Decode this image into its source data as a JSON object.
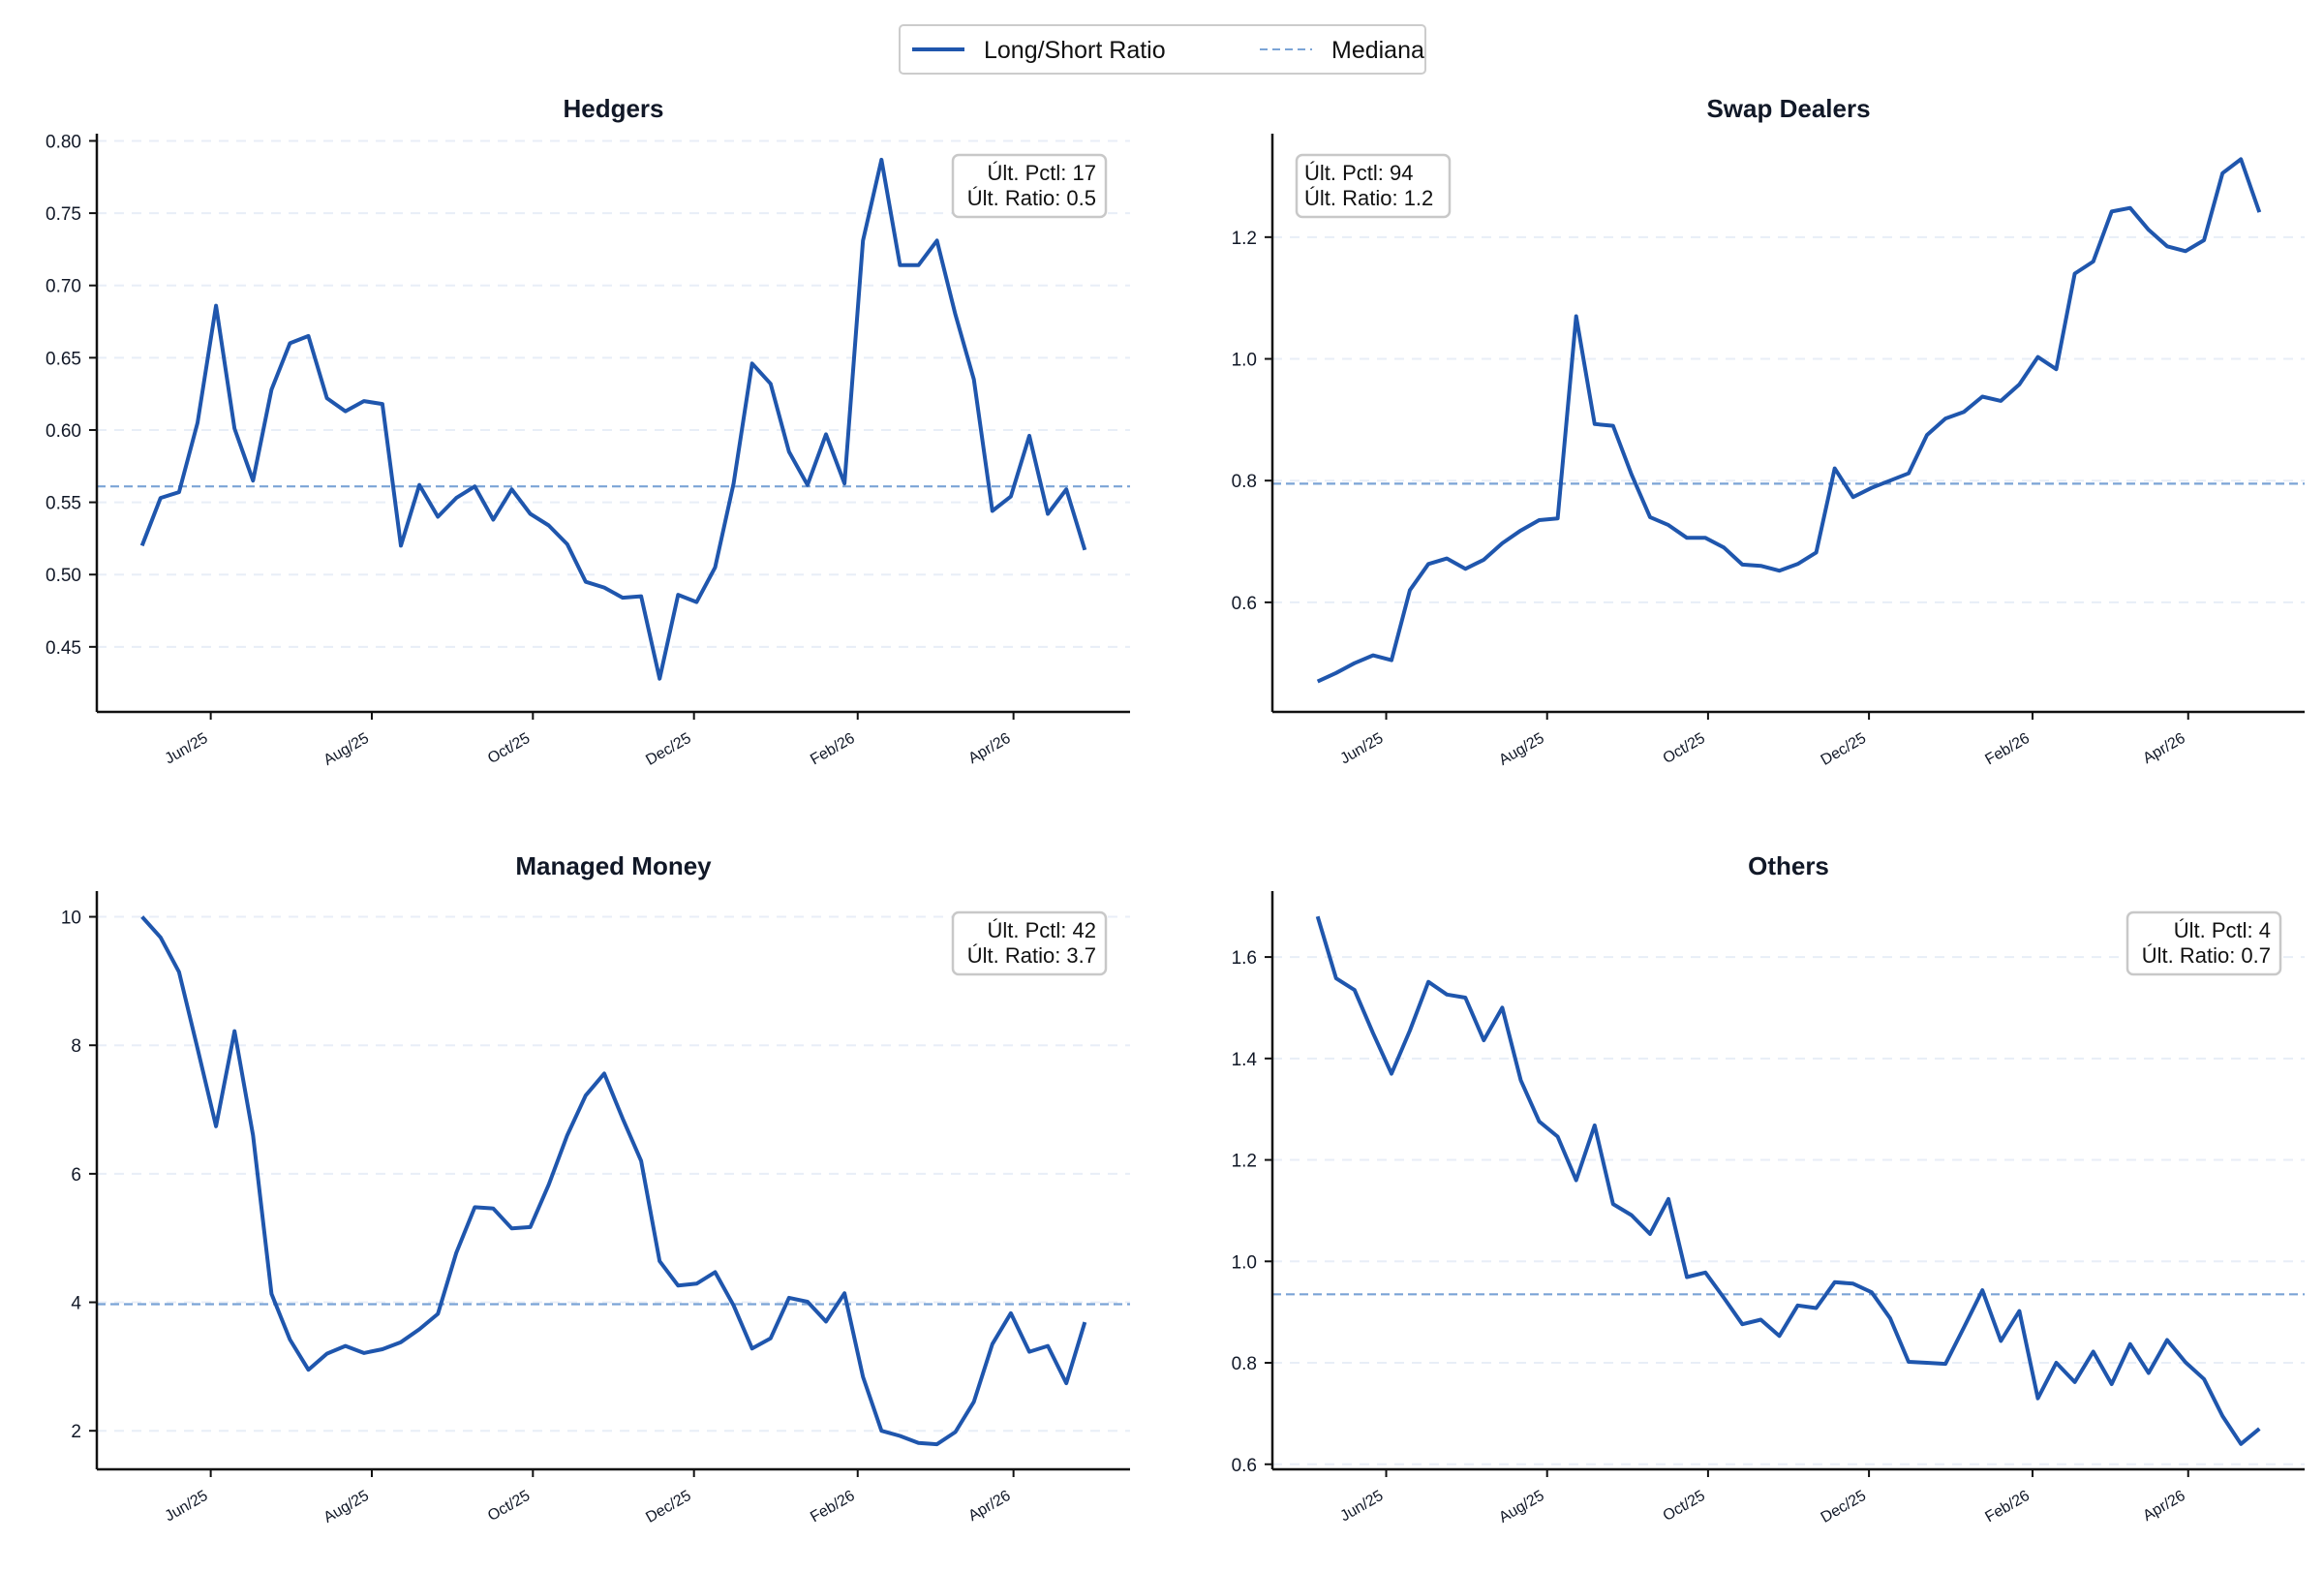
{
  "legend": {
    "series_label": "Long/Short Ratio",
    "median_label": "Mediana"
  },
  "colors": {
    "series": "#1f56ad",
    "median": "#7ba4d6",
    "grid": "#e8eef7",
    "axis": "#111111"
  },
  "x_ticks": [
    "Jun/25",
    "Aug/25",
    "Oct/25",
    "Dec/25",
    "Feb/26",
    "Apr/26"
  ],
  "chart_data": [
    {
      "type": "line",
      "title": "Hedgers",
      "x_start": "2025-05-06",
      "x_end": "2026-04-28",
      "x_ticks": [
        "2025-06-01",
        "2025-08-01",
        "2025-10-01",
        "2025-12-01",
        "2026-02-01",
        "2026-04-01"
      ],
      "ylim": [
        0.405,
        0.805
      ],
      "yticks": [
        "0.45",
        "0.50",
        "0.55",
        "0.60",
        "0.65",
        "0.70",
        "0.75",
        "0.80"
      ],
      "ytick_values": [
        0.45,
        0.5,
        0.55,
        0.6,
        0.65,
        0.7,
        0.75,
        0.8
      ],
      "median": 0.561,
      "annotation": {
        "pctl": "Últ. Pctl: 17",
        "ratio": "Últ. Ratio: 0.5",
        "position": "top-right"
      },
      "series": [
        {
          "name": "Long/Short Ratio",
          "values": [
            0.52,
            0.553,
            0.557,
            0.605,
            0.686,
            0.601,
            0.565,
            0.628,
            0.66,
            0.665,
            0.622,
            0.613,
            0.62,
            0.618,
            0.52,
            0.562,
            0.54,
            0.553,
            0.561,
            0.538,
            0.559,
            0.542,
            0.534,
            0.521,
            0.495,
            0.491,
            0.484,
            0.485,
            0.428,
            0.486,
            0.481,
            0.505,
            0.563,
            0.646,
            0.632,
            0.585,
            0.562,
            0.597,
            0.563,
            0.731,
            0.787,
            0.714,
            0.714,
            0.731,
            0.68,
            0.635,
            0.544,
            0.554,
            0.596,
            0.542,
            0.559,
            0.517
          ]
        }
      ]
    },
    {
      "type": "line",
      "title": "Swap Dealers",
      "x_start": "2025-05-06",
      "x_end": "2026-04-28",
      "x_ticks": [
        "2025-06-01",
        "2025-08-01",
        "2025-10-01",
        "2025-12-01",
        "2026-02-01",
        "2026-04-01"
      ],
      "ylim": [
        0.42,
        1.37
      ],
      "yticks": [
        "0.6",
        "0.8",
        "1.0",
        "1.2"
      ],
      "ytick_values": [
        0.6,
        0.8,
        1.0,
        1.2
      ],
      "median": 0.795,
      "annotation": {
        "pctl": "Últ. Pctl: 94",
        "ratio": "Últ. Ratio: 1.2",
        "position": "top-left"
      },
      "series": [
        {
          "name": "Long/Short Ratio",
          "values": [
            0.47,
            0.484,
            0.5,
            0.513,
            0.505,
            0.62,
            0.663,
            0.672,
            0.655,
            0.67,
            0.697,
            0.718,
            0.735,
            0.738,
            1.07,
            0.893,
            0.89,
            0.81,
            0.74,
            0.727,
            0.706,
            0.706,
            0.69,
            0.662,
            0.66,
            0.652,
            0.663,
            0.682,
            0.82,
            0.773,
            0.788,
            0.8,
            0.812,
            0.875,
            0.902,
            0.913,
            0.938,
            0.931,
            0.958,
            1.003,
            0.983,
            1.14,
            1.16,
            1.242,
            1.248,
            1.212,
            1.185,
            1.177,
            1.195,
            1.305,
            1.328,
            1.241
          ]
        }
      ]
    },
    {
      "type": "line",
      "title": "Managed Money",
      "x_start": "2025-05-06",
      "x_end": "2026-04-28",
      "x_ticks": [
        "2025-06-01",
        "2025-08-01",
        "2025-10-01",
        "2025-12-01",
        "2026-02-01",
        "2026-04-01"
      ],
      "ylim": [
        1.4,
        10.4
      ],
      "yticks": [
        "2",
        "4",
        "6",
        "8",
        "10"
      ],
      "ytick_values": [
        2,
        4,
        6,
        8,
        10
      ],
      "median": 3.97,
      "annotation": {
        "pctl": "Últ. Pctl: 42",
        "ratio": "Últ. Ratio: 3.7",
        "position": "top-right"
      },
      "series": [
        {
          "name": "Long/Short Ratio",
          "values": [
            10.0,
            9.68,
            9.14,
            7.95,
            6.74,
            8.22,
            6.6,
            4.13,
            3.42,
            2.95,
            3.2,
            3.32,
            3.21,
            3.27,
            3.38,
            3.58,
            3.82,
            4.77,
            5.48,
            5.46,
            5.15,
            5.17,
            5.83,
            6.6,
            7.22,
            7.56,
            6.86,
            6.2,
            4.64,
            4.26,
            4.29,
            4.47,
            3.95,
            3.28,
            3.44,
            4.07,
            4.01,
            3.7,
            4.14,
            2.84,
            2.0,
            1.92,
            1.81,
            1.79,
            1.98,
            2.45,
            3.35,
            3.83,
            3.23,
            3.32,
            2.74,
            3.69
          ]
        }
      ]
    },
    {
      "type": "line",
      "title": "Others",
      "x_start": "2025-05-06",
      "x_end": "2026-04-28",
      "x_ticks": [
        "2025-06-01",
        "2025-08-01",
        "2025-10-01",
        "2025-12-01",
        "2026-02-01",
        "2026-04-01"
      ],
      "ylim": [
        0.59,
        1.73
      ],
      "yticks": [
        "0.6",
        "0.8",
        "1.0",
        "1.2",
        "1.4",
        "1.6"
      ],
      "ytick_values": [
        0.6,
        0.8,
        1.0,
        1.2,
        1.4,
        1.6
      ],
      "median": 0.935,
      "annotation": {
        "pctl": "Últ. Pctl: 4",
        "ratio": "Últ. Ratio: 0.7",
        "position": "top-right"
      },
      "series": [
        {
          "name": "Long/Short Ratio",
          "values": [
            1.68,
            1.558,
            1.535,
            1.45,
            1.37,
            1.455,
            1.551,
            1.526,
            1.52,
            1.436,
            1.5,
            1.357,
            1.276,
            1.246,
            1.16,
            1.268,
            1.113,
            1.091,
            1.054,
            1.123,
            0.969,
            0.978,
            0.928,
            0.876,
            0.885,
            0.853,
            0.913,
            0.908,
            0.959,
            0.956,
            0.939,
            0.888,
            0.802,
            0.8,
            0.798,
            0.87,
            0.943,
            0.843,
            0.902,
            0.73,
            0.8,
            0.762,
            0.822,
            0.758,
            0.837,
            0.78,
            0.845,
            0.801,
            0.768,
            0.695,
            0.64,
            0.67
          ]
        }
      ]
    }
  ]
}
